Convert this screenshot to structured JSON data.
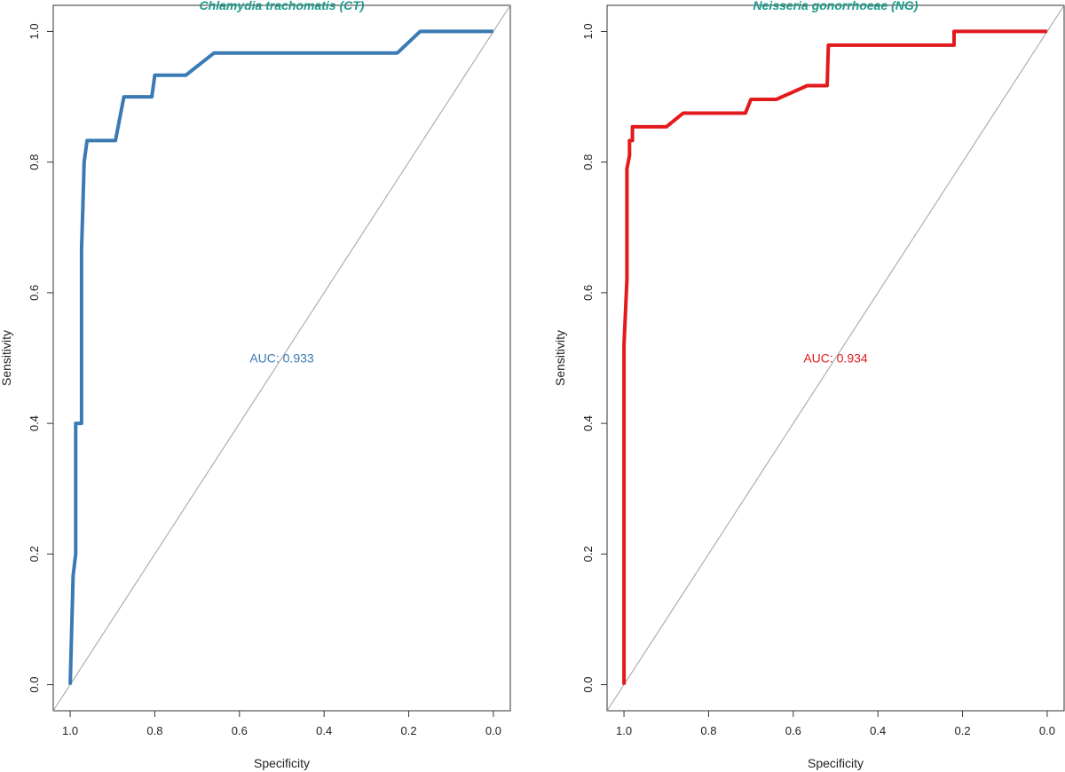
{
  "title_color": "#1a9a8a",
  "diagonal_color": "#a0a0a0",
  "chart_data": [
    {
      "type": "line",
      "title": "Chlamydia trachomatis (CT)",
      "xlabel": "Specificity",
      "ylabel": "Sensitivity",
      "xlim": [
        1.0,
        0.0
      ],
      "ylim": [
        0.0,
        1.0
      ],
      "x_reversed": true,
      "xticks": [
        1.0,
        0.8,
        0.6,
        0.4,
        0.2,
        0.0
      ],
      "yticks": [
        0.0,
        0.2,
        0.4,
        0.6,
        0.8,
        1.0
      ],
      "xtick_labels": [
        "1.0",
        "0.8",
        "0.6",
        "0.4",
        "0.2",
        "0.0"
      ],
      "ytick_labels": [
        "0.0",
        "0.2",
        "0.4",
        "0.6",
        "0.8",
        "1.0"
      ],
      "grid": false,
      "reference_line": "diagonal",
      "annotation": {
        "text": "AUC: 0.933",
        "x": 0.5,
        "y": 0.5
      },
      "series": [
        {
          "color": "#3a7ab3",
          "x": [
            1.0,
            0.993,
            0.987,
            0.987,
            0.98,
            0.973,
            0.973,
            0.97,
            0.967,
            0.96,
            0.893,
            0.873,
            0.807,
            0.8,
            0.727,
            0.66,
            0.227,
            0.173,
            0.0
          ],
          "y": [
            0.0,
            0.167,
            0.2,
            0.4,
            0.4,
            0.4,
            0.667,
            0.733,
            0.8,
            0.833,
            0.833,
            0.9,
            0.9,
            0.933,
            0.933,
            0.967,
            0.967,
            1.0,
            1.0
          ]
        }
      ]
    },
    {
      "type": "line",
      "title": "Neisseria gonorrhoeae (NG)",
      "xlabel": "Specificity",
      "ylabel": "Sensitivity",
      "xlim": [
        1.0,
        0.0
      ],
      "ylim": [
        0.0,
        1.0
      ],
      "x_reversed": true,
      "xticks": [
        1.0,
        0.8,
        0.6,
        0.4,
        0.2,
        0.0
      ],
      "yticks": [
        0.0,
        0.2,
        0.4,
        0.6,
        0.8,
        1.0
      ],
      "xtick_labels": [
        "1.0",
        "0.8",
        "0.6",
        "0.4",
        "0.2",
        "0.0"
      ],
      "ytick_labels": [
        "0.0",
        "0.2",
        "0.4",
        "0.6",
        "0.8",
        "1.0"
      ],
      "grid": false,
      "reference_line": "diagonal",
      "annotation": {
        "text": "AUC: 0.934",
        "x": 0.5,
        "y": 0.5
      },
      "series": [
        {
          "color": "#e31a1c",
          "x": [
            1.0,
            1.0,
            0.993,
            0.993,
            0.987,
            0.987,
            0.98,
            0.98,
            0.977,
            0.977,
            0.9,
            0.86,
            0.713,
            0.7,
            0.64,
            0.567,
            0.52,
            0.517,
            0.22,
            0.22,
            0.0
          ],
          "y": [
            0.0,
            0.52,
            0.62,
            0.79,
            0.81,
            0.833,
            0.833,
            0.854,
            0.854,
            0.854,
            0.854,
            0.875,
            0.875,
            0.896,
            0.896,
            0.917,
            0.917,
            0.979,
            0.979,
            1.0,
            1.0
          ]
        }
      ]
    }
  ]
}
